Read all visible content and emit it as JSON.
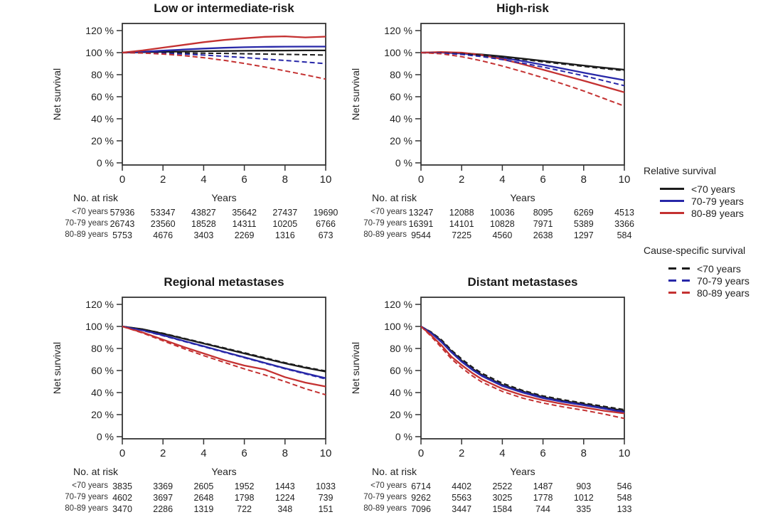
{
  "colors": {
    "black": "#1c1c1c",
    "blue": "#2727a8",
    "red": "#c43131",
    "axis": "#333333",
    "text": "#222222"
  },
  "legend": {
    "relative_title": "Relative survival",
    "cause_title": "Cause-specific survival",
    "relative_entries": [
      {
        "label": "<70 years",
        "color": "black",
        "dash": false
      },
      {
        "label": "70-79 years",
        "color": "blue",
        "dash": false
      },
      {
        "label": "80-89 years",
        "color": "red",
        "dash": false
      }
    ],
    "cause_entries": [
      {
        "label": "<70 years",
        "color": "black",
        "dash": true
      },
      {
        "label": "70-79 years",
        "color": "blue",
        "dash": true
      },
      {
        "label": "80-89 years",
        "color": "red",
        "dash": true
      }
    ]
  },
  "chart_data": [
    {
      "type": "line",
      "title": "Low or intermediate-risk",
      "xlabel": "Years",
      "ylabel": "Net survival",
      "x": [
        0,
        1,
        2,
        3,
        4,
        5,
        6,
        7,
        8,
        9,
        10
      ],
      "xticks": [
        0,
        2,
        4,
        6,
        8,
        10
      ],
      "yticks": [
        0,
        20,
        40,
        60,
        80,
        100,
        120
      ],
      "ylim": [
        0,
        125
      ],
      "ytick_suffix": " %",
      "series": [
        {
          "name": "Relative survival <70 years",
          "color": "black",
          "dash": false,
          "values": [
            100,
            100.3,
            100.7,
            101,
            101.3,
            101.5,
            101.7,
            101.8,
            101.9,
            102,
            102
          ]
        },
        {
          "name": "Relative survival 70-79 years",
          "color": "blue",
          "dash": false,
          "values": [
            100,
            100.8,
            101.8,
            102.8,
            103.7,
            104.4,
            104.9,
            105.2,
            105.4,
            105.5,
            105.5
          ]
        },
        {
          "name": "Relative survival 80-89 years",
          "color": "red",
          "dash": false,
          "values": [
            100,
            102,
            104.5,
            107,
            109.5,
            111.5,
            113,
            114.3,
            114.8,
            113.8,
            114.5
          ]
        },
        {
          "name": "Cause-specific survival <70 years",
          "color": "black",
          "dash": true,
          "values": [
            100,
            100,
            99.9,
            99.7,
            99.5,
            99.3,
            99,
            98.7,
            98.4,
            98.1,
            97.8
          ]
        },
        {
          "name": "Cause-specific survival 70-79 years",
          "color": "blue",
          "dash": true,
          "values": [
            100,
            99.8,
            99.4,
            98.7,
            97.8,
            96.7,
            95.5,
            94.2,
            92.9,
            91.5,
            90
          ]
        },
        {
          "name": "Cause-specific survival 80-89 years",
          "color": "red",
          "dash": true,
          "values": [
            100,
            99.6,
            98.7,
            97.3,
            95.4,
            93,
            90.2,
            87,
            83.5,
            79.8,
            76
          ]
        }
      ],
      "at_risk": {
        "label": "No. at risk",
        "columns": [
          0,
          2,
          4,
          6,
          8,
          10
        ],
        "rows": [
          {
            "label": "<70 years",
            "values": [
              57936,
              53347,
              43827,
              35642,
              27437,
              19690
            ]
          },
          {
            "label": "70-79 years",
            "values": [
              26743,
              23560,
              18528,
              14311,
              10205,
              6766
            ]
          },
          {
            "label": "80-89 years",
            "values": [
              5753,
              4676,
              3403,
              2269,
              1316,
              673
            ]
          }
        ]
      }
    },
    {
      "type": "line",
      "title": "High-risk",
      "xlabel": "Years",
      "ylabel": "Net survival",
      "x": [
        0,
        1,
        2,
        3,
        4,
        5,
        6,
        7,
        8,
        9,
        10
      ],
      "xticks": [
        0,
        2,
        4,
        6,
        8,
        10
      ],
      "yticks": [
        0,
        20,
        40,
        60,
        80,
        100,
        120
      ],
      "ylim": [
        0,
        125
      ],
      "ytick_suffix": " %",
      "series": [
        {
          "name": "Relative survival <70 years",
          "color": "black",
          "dash": false,
          "values": [
            100,
            100.2,
            99.6,
            98.3,
            96.6,
            94.6,
            92.5,
            90.4,
            88.3,
            86.3,
            84.5
          ]
        },
        {
          "name": "Relative survival 70-79 years",
          "color": "blue",
          "dash": false,
          "values": [
            100,
            100,
            99.2,
            97.6,
            95.2,
            92.3,
            89,
            85.4,
            81.8,
            78.3,
            75
          ]
        },
        {
          "name": "Relative survival 80-89 years",
          "color": "red",
          "dash": false,
          "values": [
            100,
            100.5,
            100,
            97.8,
            94,
            89.5,
            84.5,
            79.5,
            74.5,
            69.3,
            64
          ]
        },
        {
          "name": "Cause-specific survival <70 years",
          "color": "black",
          "dash": true,
          "values": [
            100,
            99.8,
            99,
            97.6,
            95.8,
            93.8,
            91.7,
            89.6,
            87.5,
            85.5,
            83.7
          ]
        },
        {
          "name": "Cause-specific survival 70-79 years",
          "color": "blue",
          "dash": true,
          "values": [
            100,
            99.6,
            98.4,
            96.4,
            93.7,
            90.5,
            86.9,
            83,
            79,
            74.5,
            70
          ]
        },
        {
          "name": "Cause-specific survival 80-89 years",
          "color": "red",
          "dash": true,
          "values": [
            100,
            99,
            96.3,
            92.5,
            87.9,
            82.7,
            77.2,
            71.4,
            65.2,
            58.4,
            51.5
          ]
        }
      ],
      "at_risk": {
        "label": "No. at risk",
        "columns": [
          0,
          2,
          4,
          6,
          8,
          10
        ],
        "rows": [
          {
            "label": "<70 years",
            "values": [
              13247,
              12088,
              10036,
              8095,
              6269,
              4513
            ]
          },
          {
            "label": "70-79 years",
            "values": [
              16391,
              14101,
              10828,
              7971,
              5389,
              3366
            ]
          },
          {
            "label": "80-89 years",
            "values": [
              9544,
              7225,
              4560,
              2638,
              1297,
              584
            ]
          }
        ]
      }
    },
    {
      "type": "line",
      "title": "Regional metastases",
      "xlabel": "Years",
      "ylabel": "Net survival",
      "x": [
        0,
        1,
        2,
        3,
        4,
        5,
        6,
        7,
        8,
        9,
        10
      ],
      "xticks": [
        0,
        2,
        4,
        6,
        8,
        10
      ],
      "yticks": [
        0,
        20,
        40,
        60,
        80,
        100,
        120
      ],
      "ylim": [
        0,
        125
      ],
      "ytick_suffix": " %",
      "series": [
        {
          "name": "Relative survival <70 years",
          "color": "black",
          "dash": false,
          "values": [
            100,
            97.5,
            93.5,
            89,
            84.5,
            80,
            75.5,
            71,
            66.5,
            62.5,
            59
          ]
        },
        {
          "name": "Relative survival 70-79 years",
          "color": "blue",
          "dash": false,
          "values": [
            100,
            96.5,
            92,
            87,
            82,
            77,
            72,
            67,
            62,
            57.5,
            53
          ]
        },
        {
          "name": "Relative survival 80-89 years",
          "color": "red",
          "dash": false,
          "values": [
            100,
            94.5,
            88,
            81.5,
            75.5,
            69.5,
            64.5,
            61,
            54,
            49,
            45.5
          ]
        },
        {
          "name": "Cause-specific survival <70 years",
          "color": "black",
          "dash": true,
          "values": [
            100,
            97.5,
            93.8,
            89.4,
            85,
            80.6,
            76.1,
            71.6,
            67.1,
            63.1,
            59.6
          ]
        },
        {
          "name": "Cause-specific survival 70-79 years",
          "color": "blue",
          "dash": true,
          "values": [
            100,
            96.3,
            91.6,
            86.6,
            81.6,
            76.6,
            71.6,
            66.6,
            61.6,
            57,
            52.3
          ]
        },
        {
          "name": "Cause-specific survival 80-89 years",
          "color": "red",
          "dash": true,
          "values": [
            100,
            94,
            87,
            80,
            73.5,
            67.5,
            61.5,
            56,
            50,
            43.5,
            38
          ]
        }
      ],
      "at_risk": {
        "label": "No. at risk",
        "columns": [
          0,
          2,
          4,
          6,
          8,
          10
        ],
        "rows": [
          {
            "label": "<70 years",
            "values": [
              3835,
              3369,
              2605,
              1952,
              1443,
              1033
            ]
          },
          {
            "label": "70-79 years",
            "values": [
              4602,
              3697,
              2648,
              1798,
              1224,
              739
            ]
          },
          {
            "label": "80-89 years",
            "values": [
              3470,
              2286,
              1319,
              722,
              348,
              151
            ]
          }
        ]
      }
    },
    {
      "type": "line",
      "title": "Distant metastases",
      "xlabel": "Years",
      "ylabel": "Net survival",
      "x": [
        0,
        0.5,
        1,
        1.5,
        2,
        2.5,
        3,
        4,
        5,
        6,
        7,
        8,
        9,
        10
      ],
      "xticks": [
        0,
        2,
        4,
        6,
        8,
        10
      ],
      "yticks": [
        0,
        20,
        40,
        60,
        80,
        100,
        120
      ],
      "ylim": [
        0,
        125
      ],
      "ytick_suffix": " %",
      "series": [
        {
          "name": "Relative survival <70 years",
          "color": "black",
          "dash": false,
          "values": [
            100,
            94.5,
            87,
            77.5,
            69,
            62,
            56,
            47,
            41,
            36,
            32.5,
            29.5,
            26.5,
            23.5
          ]
        },
        {
          "name": "Relative survival 70-79 years",
          "color": "blue",
          "dash": false,
          "values": [
            100,
            94,
            86,
            76.5,
            68,
            61,
            55,
            46,
            40,
            35,
            31.5,
            28.5,
            25.5,
            22
          ]
        },
        {
          "name": "Relative survival 80-89 years",
          "color": "red",
          "dash": false,
          "values": [
            100,
            92,
            83,
            72.5,
            65,
            58,
            52,
            43.5,
            37.5,
            33,
            29.5,
            26.5,
            23.5,
            21
          ]
        },
        {
          "name": "Cause-specific survival <70 years",
          "color": "black",
          "dash": true,
          "values": [
            100,
            95,
            88,
            78.5,
            70.5,
            63.5,
            57.5,
            48.5,
            42,
            37,
            33.5,
            30.5,
            27.5,
            24.5
          ]
        },
        {
          "name": "Cause-specific survival 70-79 years",
          "color": "blue",
          "dash": true,
          "values": [
            100,
            94.2,
            86.4,
            77,
            68.6,
            61.6,
            55.6,
            46.6,
            40.6,
            35.6,
            32,
            29,
            26,
            22.7
          ]
        },
        {
          "name": "Cause-specific survival 80-89 years",
          "color": "red",
          "dash": true,
          "values": [
            100,
            91,
            81,
            70.5,
            62.5,
            55.5,
            49.5,
            41,
            35,
            30.5,
            27,
            24,
            20.5,
            16.5
          ]
        }
      ],
      "at_risk": {
        "label": "No. at risk",
        "columns": [
          0,
          2,
          4,
          6,
          8,
          10
        ],
        "rows": [
          {
            "label": "<70 years",
            "values": [
              6714,
              4402,
              2522,
              1487,
              903,
              546
            ]
          },
          {
            "label": "70-79 years",
            "values": [
              9262,
              5563,
              3025,
              1778,
              1012,
              548
            ]
          },
          {
            "label": "80-89 years",
            "values": [
              7096,
              3447,
              1584,
              744,
              335,
              133
            ]
          }
        ]
      }
    }
  ]
}
